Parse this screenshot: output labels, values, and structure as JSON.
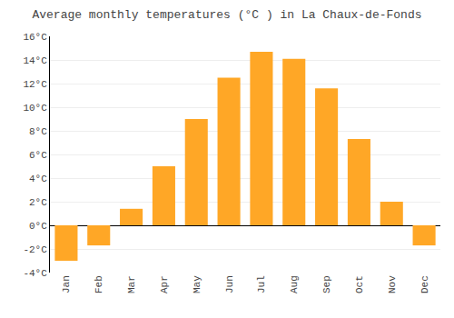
{
  "chart_data": {
    "type": "bar",
    "title": "Average monthly temperatures (°C ) in La Chaux-de-Fonds",
    "categories": [
      "Jan",
      "Feb",
      "Mar",
      "Apr",
      "May",
      "Jun",
      "Jul",
      "Aug",
      "Sep",
      "Oct",
      "Nov",
      "Dec"
    ],
    "values": [
      -3.0,
      -1.7,
      1.4,
      5.0,
      9.0,
      12.5,
      14.7,
      14.1,
      11.6,
      7.3,
      2.0,
      -1.7
    ],
    "color": "#FFA726",
    "ylim": [
      -4,
      16
    ],
    "yticks": [
      {
        "value": -4,
        "label": "-4°C"
      },
      {
        "value": -2,
        "label": "-2°C"
      },
      {
        "value": 0,
        "label": "0°C"
      },
      {
        "value": 2,
        "label": "2°C"
      },
      {
        "value": 4,
        "label": "4°C"
      },
      {
        "value": 6,
        "label": "6°C"
      },
      {
        "value": 8,
        "label": "8°C"
      },
      {
        "value": 10,
        "label": "10°C"
      },
      {
        "value": 12,
        "label": "12°C"
      },
      {
        "value": 14,
        "label": "14°C"
      },
      {
        "value": 16,
        "label": "16°C"
      }
    ],
    "grid": true
  }
}
